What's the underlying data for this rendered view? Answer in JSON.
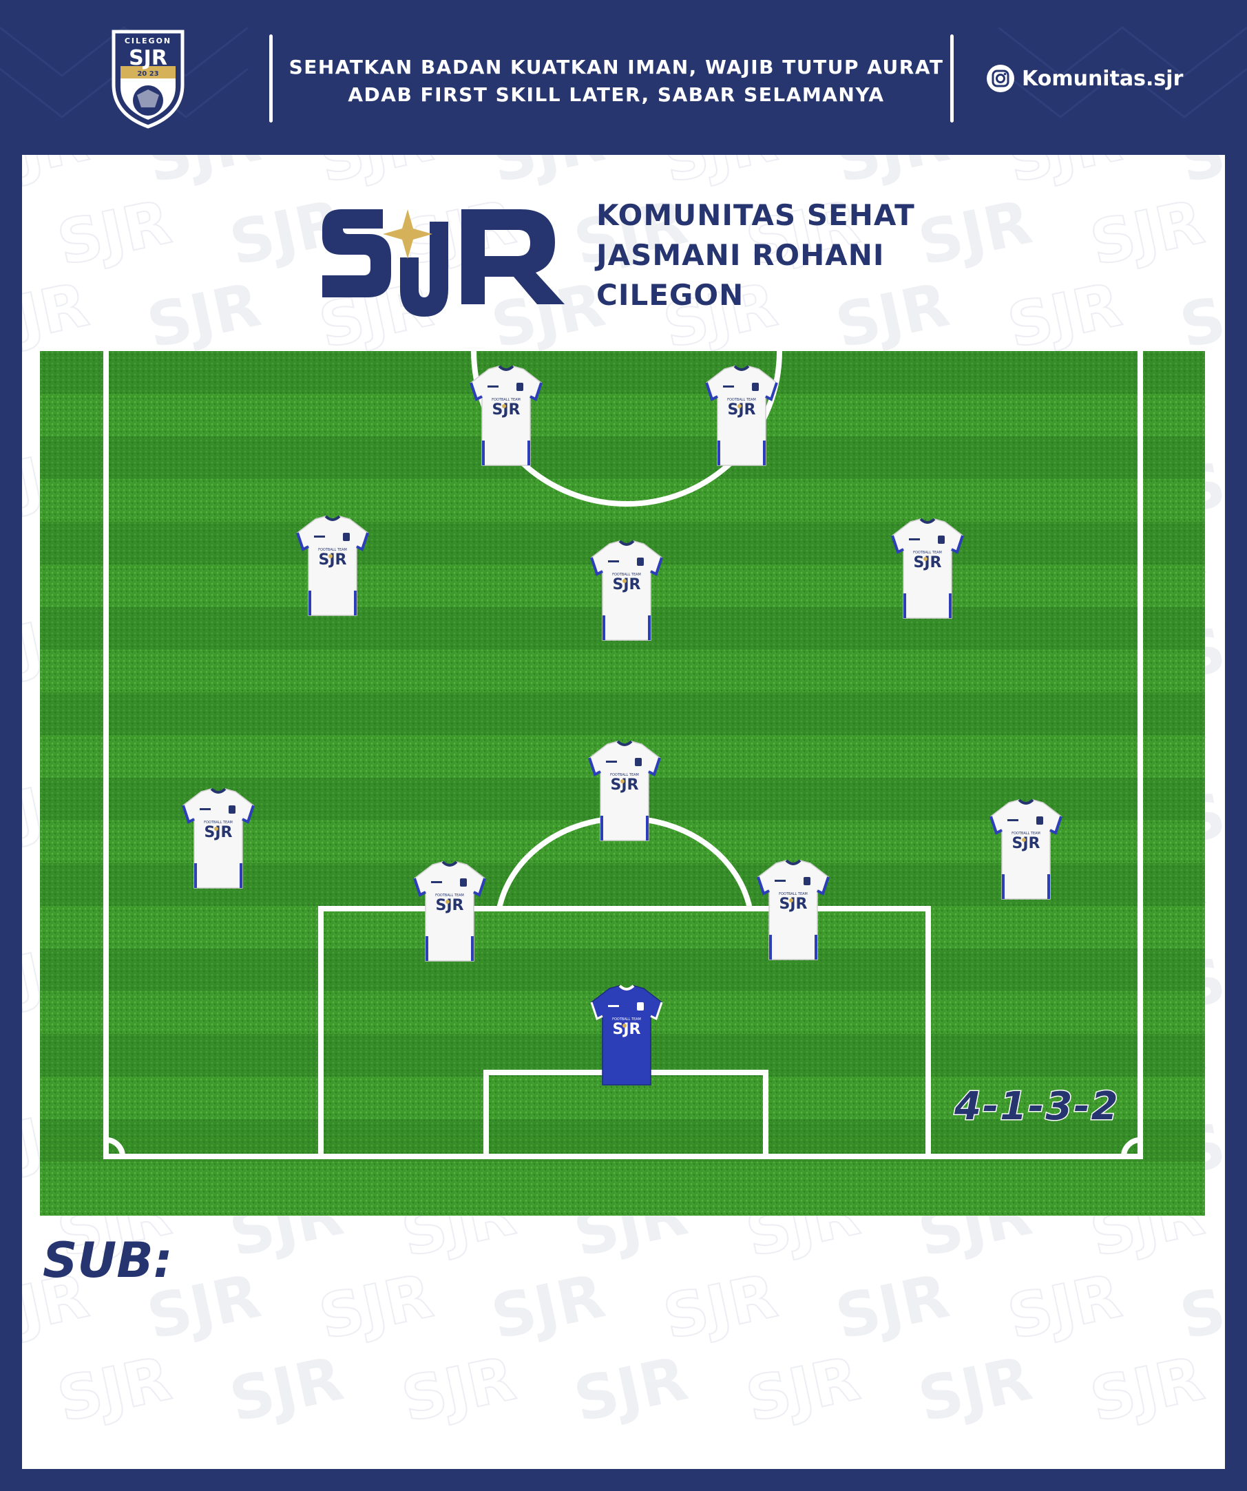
{
  "header": {
    "motto_line1": "SEHATKAN BADAN KUATKAN IMAN,  WAJIB TUTUP AURAT",
    "motto_line2": "ADAB FIRST SKILL LATER, SABAR SELAMANYA",
    "instagram_handle": "Komunitas.sjr",
    "crest_top_text": "CILEGON",
    "crest_letters": "SJR",
    "crest_year": "20 23"
  },
  "brand": {
    "logo_letters": "SJR",
    "name_line1": "KOMUNITAS SEHAT",
    "name_line2": "JASMANI ROHANI",
    "name_line3": "CILEGON",
    "watermark_text": "SJR"
  },
  "jersey": {
    "team_text": "FOOTBALL TEAM",
    "chest_text": "SJR"
  },
  "lineup": {
    "formation": "4-1-3-2",
    "sub_label": "SUB:"
  },
  "colors": {
    "navy": "#26356f",
    "gold": "#d5b25a",
    "grass": "#3f9a2e",
    "white": "#ffffff"
  }
}
